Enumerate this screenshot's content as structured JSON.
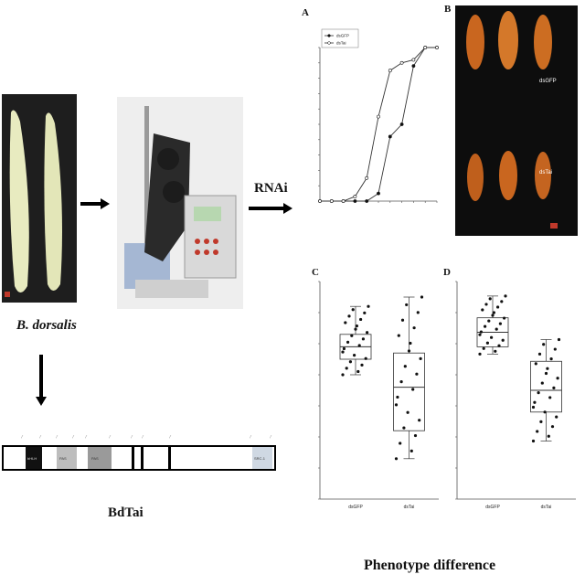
{
  "left": {
    "species_label": "B. dorsalis",
    "gene_label": "BdTai",
    "rnai_label": "RNAi",
    "gene_domains": [
      "bHLH",
      "PAS",
      "PAS",
      "SRC-1"
    ]
  },
  "panel_a": {
    "letter": "A"
  },
  "panel_b": {
    "letter": "B",
    "label_top": "dsGFP",
    "label_bottom": "dsTai"
  },
  "panel_c": {
    "letter": "C",
    "x_labels": [
      "dsGFP",
      "dsTai"
    ]
  },
  "panel_d": {
    "letter": "D",
    "x_labels": [
      "dsGFP",
      "dsTai"
    ]
  },
  "footer": {
    "title": "Phenotype difference"
  },
  "colors": {
    "larva": "#e8ebc0",
    "pupa": "#d4782a",
    "accent_gray": "#9a9a9a"
  },
  "chart_data": [
    {
      "type": "line",
      "panel": "A",
      "series": [
        {
          "name": "dsGFP",
          "marker": "filled",
          "values": [
            0,
            0,
            0,
            0,
            0,
            5,
            42,
            50,
            88,
            100,
            100
          ]
        },
        {
          "name": "dsTai",
          "marker": "open",
          "values": [
            0,
            0,
            0,
            3,
            15,
            55,
            85,
            90,
            92,
            100,
            100
          ]
        }
      ],
      "ylim": [
        0,
        100
      ],
      "yticks": [
        0,
        10,
        20,
        30,
        40,
        50,
        60,
        70,
        80,
        90,
        100
      ]
    },
    {
      "type": "box",
      "panel": "C",
      "categories": [
        "dsGFP",
        "dsTai"
      ],
      "boxes": [
        {
          "min": 9.0,
          "q1": 9.5,
          "median": 9.9,
          "q3": 10.3,
          "max": 11.2
        },
        {
          "min": 6.3,
          "q1": 7.2,
          "median": 8.6,
          "q3": 9.7,
          "max": 11.5
        }
      ],
      "ylim": [
        5,
        12
      ]
    },
    {
      "type": "box",
      "panel": "D",
      "categories": [
        "dsGFP",
        "dsTai"
      ],
      "boxes": [
        {
          "min": 30,
          "q1": 31,
          "median": 33,
          "q3": 35,
          "max": 38
        },
        {
          "min": 18,
          "q1": 22,
          "median": 25,
          "q3": 29,
          "max": 32
        }
      ],
      "ylim": [
        10,
        40
      ]
    }
  ]
}
